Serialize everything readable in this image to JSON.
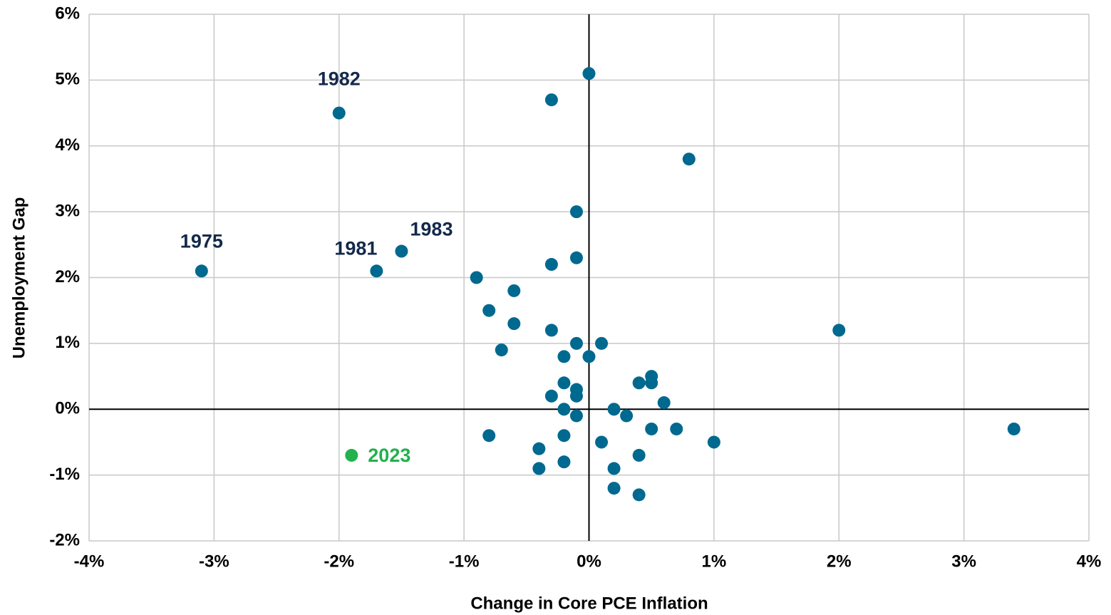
{
  "chart_data": {
    "type": "scatter",
    "xlabel": "Change in Core PCE Inflation",
    "ylabel": "Unemployment Gap",
    "xlim": [
      -4,
      4
    ],
    "ylim": [
      -2,
      6
    ],
    "xticks": [
      {
        "value": -4,
        "label": "-4%"
      },
      {
        "value": -3,
        "label": "-3%"
      },
      {
        "value": -2,
        "label": "-2%"
      },
      {
        "value": -1,
        "label": "-1%"
      },
      {
        "value": 0,
        "label": "0%"
      },
      {
        "value": 1,
        "label": "1%"
      },
      {
        "value": 2,
        "label": "2%"
      },
      {
        "value": 3,
        "label": "3%"
      },
      {
        "value": 4,
        "label": "4%"
      }
    ],
    "yticks": [
      {
        "value": -2,
        "label": "-2%"
      },
      {
        "value": -1,
        "label": "-1%"
      },
      {
        "value": 0,
        "label": "0%"
      },
      {
        "value": 1,
        "label": "1%"
      },
      {
        "value": 2,
        "label": "2%"
      },
      {
        "value": 3,
        "label": "3%"
      },
      {
        "value": 4,
        "label": "4%"
      },
      {
        "value": 5,
        "label": "5%"
      },
      {
        "value": 6,
        "label": "6%"
      }
    ],
    "grid": true,
    "series": [
      {
        "color": "#00698f",
        "label_color": "#13294b",
        "x": [
          -3.1,
          -2.0,
          -1.7,
          -1.5,
          0,
          -0.3,
          0.8,
          -0.1,
          -0.1,
          -0.3,
          -0.9,
          -0.6,
          -0.8,
          -0.6,
          -0.3,
          2.0,
          -0.1,
          0.1,
          -0.7,
          -0.2,
          0,
          0.5,
          0.4,
          0.5,
          -0.2,
          -0.1,
          -0.3,
          -0.1,
          0.6,
          -0.2,
          0.2,
          -0.1,
          0.3,
          0.5,
          0.7,
          3.4,
          -0.8,
          -0.2,
          0.1,
          1.0,
          -0.4,
          0.4,
          -0.2,
          -0.4,
          0.2,
          0.2,
          0.4
        ],
        "y": [
          2.1,
          4.5,
          2.1,
          2.4,
          5.1,
          4.7,
          3.8,
          3.0,
          2.3,
          2.2,
          2.0,
          1.8,
          1.5,
          1.3,
          1.2,
          1.2,
          1.0,
          1.0,
          0.9,
          0.8,
          0.8,
          0.5,
          0.4,
          0.4,
          0.4,
          0.3,
          0.2,
          0.2,
          0.1,
          0,
          0,
          -0.1,
          -0.1,
          -0.3,
          -0.3,
          -0.3,
          -0.4,
          -0.4,
          -0.5,
          -0.5,
          -0.6,
          -0.7,
          -0.8,
          -0.9,
          -0.9,
          -1.2,
          -1.3
        ],
        "labels": [
          "1975",
          "1982",
          "1981",
          "1983",
          null,
          null,
          null,
          null,
          null,
          null,
          null,
          null,
          null,
          null,
          null,
          null,
          null,
          null,
          null,
          null,
          null,
          null,
          null,
          null,
          null,
          null,
          null,
          null,
          null,
          null,
          null,
          null,
          null,
          null,
          null,
          null,
          null,
          null,
          null,
          null,
          null,
          null,
          null,
          null,
          null,
          null,
          null
        ]
      },
      {
        "color": "#22b14c",
        "label_color": "#22b14c",
        "x": [
          -1.9
        ],
        "y": [
          -0.7
        ],
        "labels": [
          "2023"
        ]
      }
    ]
  }
}
